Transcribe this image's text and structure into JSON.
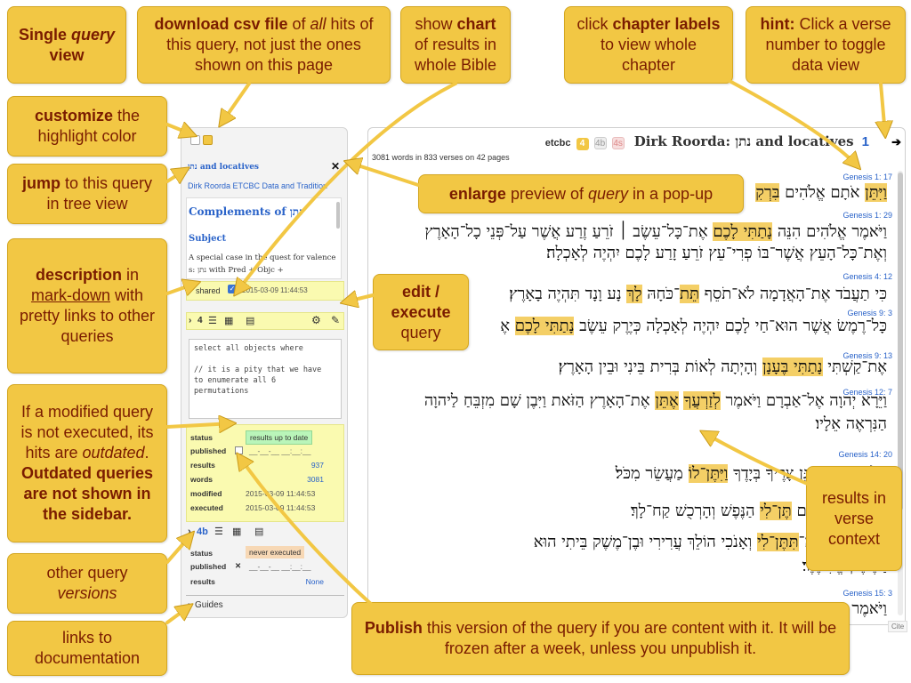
{
  "callouts": {
    "single_query_a": "Single ",
    "single_query_b": "query",
    "single_query_c": "view",
    "download_a": "download csv file",
    "download_b": " of ",
    "download_c": "all",
    "download_d": " hits of this query, not just the ones shown on this page",
    "chart_a": "show ",
    "chart_b": "chart",
    "chart_c": " of results in whole Bible",
    "chapter_a": "click ",
    "chapter_b": "chapter labels",
    "chapter_c": " to view whole chapter",
    "hint_a": "hint:",
    "hint_b": " Click a verse number to toggle data view",
    "customize_a": "customize",
    "customize_b": " the highlight color",
    "jump_a": "jump",
    "jump_b": " to this query in tree view",
    "enlarge_a": "enlarge",
    "enlarge_b": " preview of ",
    "enlarge_c": "query",
    "enlarge_d": " in a pop-up",
    "description_a": "description",
    "description_b": " in ",
    "description_c": "mark-down",
    "description_d": " with pretty links to other queries",
    "edit_a": "edit /",
    "edit_b": "execute",
    "edit_c": "query",
    "outdated_a": "If a modified query is not executed, its hits are ",
    "outdated_b": "outdated",
    "outdated_c": ". ",
    "outdated_d": "Outdated queries are not shown in the sidebar.",
    "results_context": "results in verse context",
    "versions_a": "other query ",
    "versions_b": "versions",
    "links_doc": "links to documentation",
    "publish_a": "Publish",
    "publish_b": " this version of the query if you are content with it. It will be frozen after a week, unless you unpublish it."
  },
  "sidebar": {
    "query_title": "נתן and locatives",
    "author_line": "Dirk Roorda ETCBC Data and Tradition",
    "desc_heading": "Complements of נתן",
    "desc_subheading": "Subject",
    "desc_text1": "A special case in the quest for valence",
    "desc_text2": "s: נתן with Pred + Objc +",
    "shared_label": "shared",
    "shared_date": "2015-03-09 11:44:53",
    "version_label": "4",
    "code_line1": "select all objects where",
    "code_line2": "// it is a pity that we have",
    "code_line3": "to enumerate all 6",
    "code_line4": "permutations",
    "status_label": "status",
    "status_value": "results up to date",
    "published_label": "published",
    "published_value": "__-__-__ __:__:__",
    "results_label": "results",
    "results_value": "937",
    "words_label": "words",
    "words_value": "3081",
    "modified_label": "modified",
    "modified_value": "2015-03-09 11:44:53",
    "executed_label": "executed",
    "executed_value": "2015-03-09 11:44:53",
    "version2_label": "4b",
    "status2_label": "status",
    "status2_value": "never executed",
    "published2_label": "published",
    "published2_value": "__-__-__ __:__:__",
    "results2_label": "results",
    "results2_value": "None",
    "guides_label": "Guides"
  },
  "panel": {
    "source": "etcbc",
    "badge1": "4",
    "badge2": "4b",
    "badge3": "4s",
    "title": "Dirk Roorda: נתן and locatives",
    "page_num": "1",
    "stats": "3081 words in 833 verses on 42 pages",
    "verses": [
      {
        "ref": "Genesis 1: 17",
        "pre": "",
        "hl": "וַיִּתֵּן",
        "mid": " אֹתָם אֱלֹהִים ",
        "hl2": "בִּרְקִ",
        "post": ""
      },
      {
        "ref": "Genesis 1: 29",
        "pre": "וַיֹּאמֶר אֱלֹהִים הִנֵּה ",
        "hl": "נָתַתִּי לָכֶם",
        "mid": " אֶת־כָּל־עֵשֶׂב ׀ זֹרֵעַ זֶרַע אֲשֶׁר עַל־פְּנֵי כָל־הָאָרֶץ",
        "hl2": "",
        "post": ""
      },
      {
        "ref": "",
        "pre": "וְאֶת־כָּל־הָעֵץ אֲשֶׁר־בּוֹ פְרִי־עֵץ זֹרֵעַ זָרַע לָכֶם יִהְיֶה לְאָכְלָה׃",
        "hl": "",
        "mid": "",
        "hl2": "",
        "post": ""
      },
      {
        "ref": "Genesis 4: 12",
        "pre": "כִּי תַעֲבֹד אֶת־הָאֲדָמָה לֹא־תֹסֵף ",
        "hl": "תֵּת",
        "mid": "־כֹּחָהּ ",
        "hl2": "לָךְ",
        "post": " נָע וָנָד תִּהְיֶה בָאָרֶץ׃"
      },
      {
        "ref": "Genesis 9: 3",
        "pre": "כָּל־רֶמֶשׂ אֲשֶׁר הוּא־חַי לָכֶם יִהְיֶה לְאָכְלָה כְּיֶרֶק עֵשֶׂב ",
        "hl": "נָתַתִּי לָכֶם",
        "mid": " אֶ",
        "hl2": "",
        "post": ""
      },
      {
        "ref": "Genesis 9: 13",
        "pre": "אֶת־קַשְׁתִּי ",
        "hl": "נָתַתִּי בֶּעָנָן",
        "mid": " וְהָיְתָה לְאוֹת בְּרִית בֵּינִי וּבֵין הָאָרֶץ׃",
        "hl2": "",
        "post": ""
      },
      {
        "ref": "Genesis 12: 7",
        "pre": "וַיֵּרָא יְהוָה אֶל־אַבְרָם וַיֹּאמֶר ",
        "hl": "לְזַרְעֲךָ",
        "mid": " ",
        "hl2": "אֶתֵּן",
        "post": " אֶת־הָאָרֶץ הַזֹּאת וַיִּבֶן שָׁם מִזְבֵּחַ לַיהוָה"
      },
      {
        "ref": "",
        "pre": "הַנִּרְאֶה אֵלָיו׃",
        "hl": "",
        "mid": "",
        "hl2": "",
        "post": ""
      },
      {
        "ref": "Genesis 14: 20",
        "pre": "עֶלְיוֹן אֲשֶׁר־מִגֵּן צָרֶיךָ בְּיָדֶךָ ",
        "hl": "וַיִּתֶּן־לוֹ",
        "mid": " מַעֲשֵׂר מִכֹּל׃",
        "hl2": "",
        "post": ""
      },
      {
        "ref": "",
        "pre": "סְדֹם אֶל־אַבְרָם ",
        "hl": "תֶּן־לִי",
        "mid": " הַנֶּפֶשׁ וְהָרְכֻשׁ קַח־לָךְ׃",
        "hl2": "",
        "post": ""
      },
      {
        "ref": "",
        "pre": "אֲדֹנָי יֱהוִה מַה־",
        "hl": "תִּתֶּן־לִי",
        "mid": " וְאָנֹכִי הוֹלֵךְ עֲרִירִי וּבֶן־מֶשֶׁק בֵּיתִי הוּא",
        "hl2": "",
        "post": ""
      },
      {
        "ref": "",
        "pre": "דַּמֶּשֶׂק אֱלִיעֶזֶר׃",
        "hl": "",
        "mid": "",
        "hl2": "",
        "post": ""
      },
      {
        "ref": "Genesis 15: 3",
        "pre": "וַיֹּאמֶר",
        "hl": "",
        "mid": "",
        "hl2": "",
        "post": ""
      }
    ],
    "cite": "Cite"
  },
  "colors": {
    "callout_bg": "#f2c744",
    "callout_text": "#7a1c00",
    "highlight": "#f4cf66",
    "link_blue": "#2a63c9",
    "status_green": "#b9f5b9",
    "status_orange": "#f7d8b5"
  }
}
